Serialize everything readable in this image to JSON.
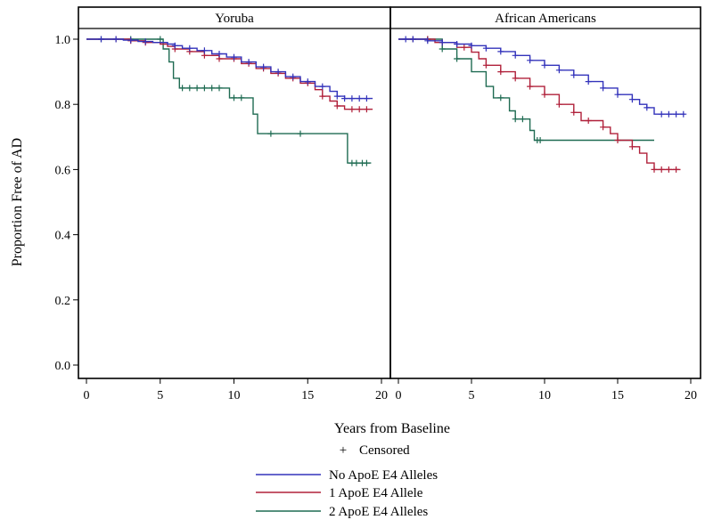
{
  "chart_data": {
    "type": "line",
    "subtype": "kaplan-meier step curves",
    "ylabel": "Proportion Free of AD",
    "xlabel": "Years from Baseline",
    "censor_note": "Censored",
    "censor_symbol": "+",
    "xlim": [
      0,
      20
    ],
    "ylim": [
      0,
      1.0
    ],
    "x_ticks": [
      "0",
      "5",
      "10",
      "15",
      "20"
    ],
    "y_ticks": [
      "0.0",
      "0.2",
      "0.4",
      "0.6",
      "0.8",
      "1.0"
    ],
    "legend_position": "bottom-center",
    "series_styles": [
      {
        "name": "No ApoE E4 Alleles",
        "color": "#3333bb"
      },
      {
        "name": "1 ApoE E4 Allele",
        "color": "#b0203a"
      },
      {
        "name": "2 ApoE E4 Alleles",
        "color": "#1f6b52"
      }
    ],
    "panels": [
      {
        "title": "Yoruba",
        "series": [
          {
            "name": "No ApoE E4 Alleles",
            "steps": [
              [
                0,
                1.0
              ],
              [
                2.5,
                0.997
              ],
              [
                3.5,
                0.993
              ],
              [
                4.5,
                0.99
              ],
              [
                5.5,
                0.985
              ],
              [
                6,
                0.98
              ],
              [
                6.5,
                0.972
              ],
              [
                7.5,
                0.965
              ],
              [
                8.5,
                0.955
              ],
              [
                9.5,
                0.945
              ],
              [
                10.5,
                0.93
              ],
              [
                11.5,
                0.915
              ],
              [
                12.5,
                0.9
              ],
              [
                13.5,
                0.885
              ],
              [
                14.5,
                0.87
              ],
              [
                15.5,
                0.855
              ],
              [
                16.5,
                0.84
              ],
              [
                17,
                0.825
              ],
              [
                17.5,
                0.818
              ],
              [
                19.4,
                0.818
              ]
            ],
            "censor": [
              1,
              2,
              3,
              4,
              6,
              7,
              8,
              9,
              10,
              11,
              12,
              13,
              14,
              15,
              16,
              17,
              17.5,
              18,
              18.5,
              19
            ]
          },
          {
            "name": "1 ApoE E4 Allele",
            "steps": [
              [
                0,
                1.0
              ],
              [
                3,
                0.995
              ],
              [
                4,
                0.99
              ],
              [
                5,
                0.985
              ],
              [
                5.5,
                0.978
              ],
              [
                6,
                0.97
              ],
              [
                7,
                0.962
              ],
              [
                8,
                0.95
              ],
              [
                9,
                0.94
              ],
              [
                10.5,
                0.925
              ],
              [
                11.5,
                0.91
              ],
              [
                12.5,
                0.895
              ],
              [
                13.5,
                0.88
              ],
              [
                14.5,
                0.865
              ],
              [
                15.5,
                0.845
              ],
              [
                16,
                0.825
              ],
              [
                16.5,
                0.81
              ],
              [
                17,
                0.795
              ],
              [
                17.5,
                0.785
              ],
              [
                19.4,
                0.785
              ]
            ],
            "censor": [
              2,
              3,
              4,
              6,
              7,
              8,
              9,
              10,
              11,
              12,
              13,
              14,
              15,
              16,
              17,
              18,
              18.5,
              19
            ]
          },
          {
            "name": "2 ApoE E4 Alleles",
            "steps": [
              [
                0,
                1.0
              ],
              [
                5.2,
                0.97
              ],
              [
                5.6,
                0.93
              ],
              [
                5.9,
                0.88
              ],
              [
                6.3,
                0.85
              ],
              [
                9.7,
                0.82
              ],
              [
                11.3,
                0.77
              ],
              [
                11.6,
                0.71
              ],
              [
                17.7,
                0.62
              ],
              [
                19.3,
                0.62
              ]
            ],
            "censor": [
              1,
              3,
              5,
              6.5,
              7,
              7.5,
              8,
              8.5,
              9,
              10,
              10.5,
              12.5,
              14.5,
              18,
              18.3,
              18.7,
              19
            ]
          }
        ]
      },
      {
        "title": "African Americans",
        "series": [
          {
            "name": "No ApoE E4 Alleles",
            "steps": [
              [
                0,
                1.0
              ],
              [
                2,
                0.995
              ],
              [
                3,
                0.99
              ],
              [
                4,
                0.985
              ],
              [
                5,
                0.98
              ],
              [
                6,
                0.972
              ],
              [
                7,
                0.962
              ],
              [
                8,
                0.95
              ],
              [
                9,
                0.935
              ],
              [
                10,
                0.92
              ],
              [
                11,
                0.905
              ],
              [
                12,
                0.89
              ],
              [
                13,
                0.87
              ],
              [
                14,
                0.85
              ],
              [
                15,
                0.83
              ],
              [
                16,
                0.815
              ],
              [
                16.5,
                0.8
              ],
              [
                17,
                0.79
              ],
              [
                17.5,
                0.77
              ],
              [
                19.6,
                0.77
              ]
            ],
            "censor": [
              0.5,
              1,
              2,
              3,
              4,
              5,
              6,
              7,
              8,
              9,
              10,
              11,
              12,
              13,
              14,
              15,
              16,
              17,
              18,
              18.5,
              19,
              19.5
            ]
          },
          {
            "name": "1 ApoE E4 Allele",
            "steps": [
              [
                0,
                1.0
              ],
              [
                2.5,
                0.99
              ],
              [
                4,
                0.975
              ],
              [
                5,
                0.96
              ],
              [
                5.5,
                0.94
              ],
              [
                6,
                0.92
              ],
              [
                7,
                0.9
              ],
              [
                8,
                0.88
              ],
              [
                9,
                0.855
              ],
              [
                10,
                0.83
              ],
              [
                11,
                0.8
              ],
              [
                12,
                0.775
              ],
              [
                12.5,
                0.75
              ],
              [
                14,
                0.73
              ],
              [
                14.5,
                0.71
              ],
              [
                15,
                0.69
              ],
              [
                16,
                0.67
              ],
              [
                16.5,
                0.65
              ],
              [
                17,
                0.62
              ],
              [
                17.5,
                0.6
              ],
              [
                19.3,
                0.6
              ]
            ],
            "censor": [
              1,
              2,
              3,
              4.5,
              6,
              7,
              8,
              9,
              10,
              11,
              12,
              13,
              14,
              15,
              16,
              17.5,
              18,
              18.5,
              19
            ]
          },
          {
            "name": "2 ApoE E4 Alleles",
            "steps": [
              [
                0,
                1.0
              ],
              [
                3,
                0.97
              ],
              [
                4,
                0.94
              ],
              [
                5,
                0.9
              ],
              [
                6,
                0.855
              ],
              [
                6.5,
                0.82
              ],
              [
                7.6,
                0.78
              ],
              [
                8,
                0.755
              ],
              [
                9,
                0.72
              ],
              [
                9.3,
                0.69
              ],
              [
                17.5,
                0.69
              ]
            ],
            "censor": [
              1,
              2,
              3,
              4,
              7,
              8,
              8.5,
              9.5,
              9.7
            ]
          }
        ]
      }
    ]
  }
}
